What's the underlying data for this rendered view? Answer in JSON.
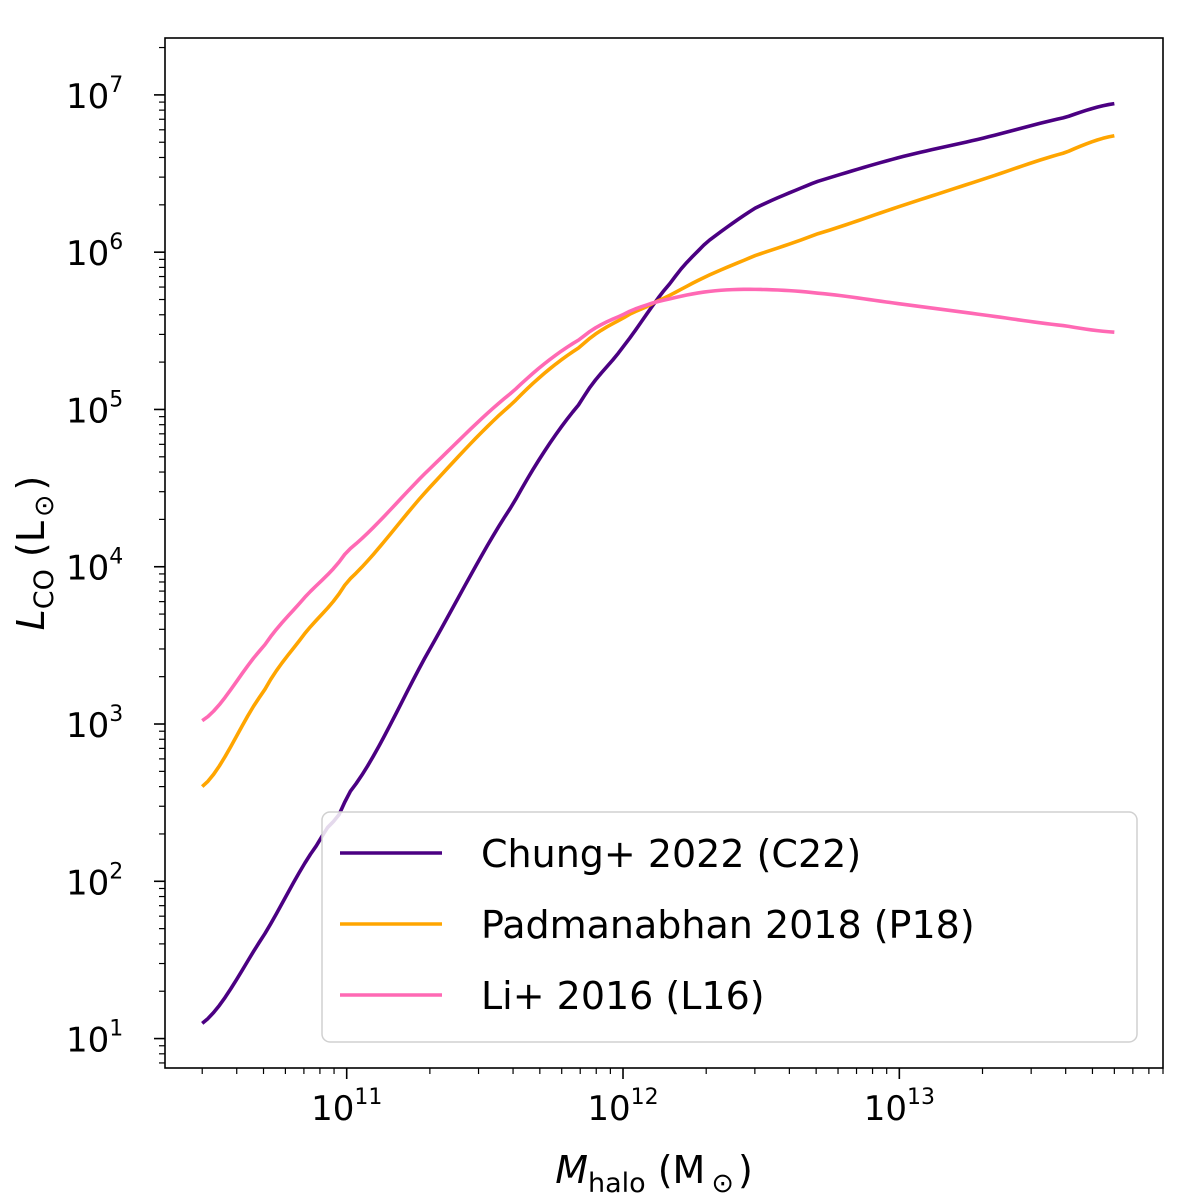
{
  "chart_data": {
    "type": "line",
    "x_scale": "log",
    "y_scale": "log",
    "xlim": [
      22000000000,
      90000000000000
    ],
    "ylim": [
      6.5,
      23000000
    ],
    "xlabel": {
      "symbol": "M",
      "subscript": "halo",
      "unit_open": "(M",
      "unit_sub": "⊙",
      "unit_close": ")"
    },
    "ylabel": {
      "symbol": "L",
      "subscript": "CO",
      "unit_open": "(L",
      "unit_sub": "⊙",
      "unit_close": ")"
    },
    "x_ticks": [
      {
        "value": 100000000000,
        "base": "10",
        "exp": "11"
      },
      {
        "value": 1000000000000,
        "base": "10",
        "exp": "12"
      },
      {
        "value": 10000000000000,
        "base": "10",
        "exp": "13"
      }
    ],
    "y_ticks": [
      {
        "value": 10,
        "base": "10",
        "exp": "1"
      },
      {
        "value": 100,
        "base": "10",
        "exp": "2"
      },
      {
        "value": 1000,
        "base": "10",
        "exp": "3"
      },
      {
        "value": 10000,
        "base": "10",
        "exp": "4"
      },
      {
        "value": 100000,
        "base": "10",
        "exp": "5"
      },
      {
        "value": 1000000,
        "base": "10",
        "exp": "6"
      },
      {
        "value": 10000000,
        "base": "10",
        "exp": "7"
      }
    ],
    "legend_position": "lower-right",
    "series": [
      {
        "name": "Chung+ 2022 (C22)",
        "color": "#4b0082",
        "x": [
          30000000000,
          50000000000,
          80000000000,
          100000000000,
          200000000000,
          400000000000,
          700000000000,
          1000000000000,
          1500000000000,
          2000000000000,
          3000000000000,
          5000000000000,
          10000000000000,
          20000000000000,
          40000000000000,
          60000000000000
        ],
        "y": [
          12.5,
          45,
          180,
          350,
          3000,
          25000,
          110000,
          250000,
          650000,
          1150000,
          1900000,
          2800000,
          4000000,
          5300000,
          7200000,
          8800000
        ]
      },
      {
        "name": "Padmanabhan 2018 (P18)",
        "color": "#ffa500",
        "x": [
          30000000000,
          50000000000,
          70000000000,
          100000000000,
          200000000000,
          400000000000,
          700000000000,
          1000000000000,
          1300000000000,
          2000000000000,
          3000000000000,
          5000000000000,
          10000000000000,
          20000000000000,
          40000000000000,
          60000000000000
        ],
        "y": [
          400,
          1600,
          3700,
          8000,
          32000,
          110000,
          250000,
          380000,
          480000,
          700000,
          950000,
          1300000,
          1950000,
          2900000,
          4300000,
          5500000
        ]
      },
      {
        "name": "Li+ 2016 (L16)",
        "color": "#ff69b4",
        "x": [
          30000000000,
          50000000000,
          70000000000,
          100000000000,
          200000000000,
          400000000000,
          700000000000,
          1000000000000,
          1300000000000,
          2000000000000,
          3000000000000,
          5000000000000,
          10000000000000,
          20000000000000,
          40000000000000,
          60000000000000
        ],
        "y": [
          1050,
          3100,
          6300,
          12500,
          42000,
          130000,
          280000,
          400000,
          480000,
          560000,
          580000,
          550000,
          470000,
          400000,
          340000,
          310000
        ]
      }
    ]
  }
}
